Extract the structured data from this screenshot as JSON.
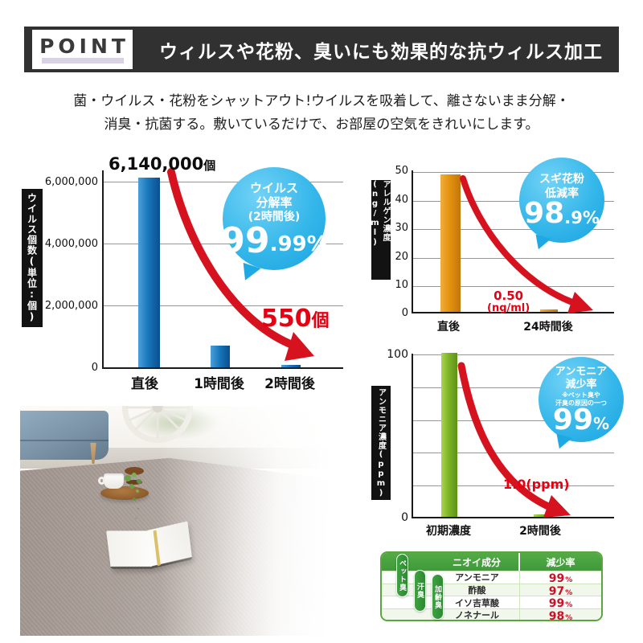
{
  "header": {
    "point_label": "POINT",
    "title": "ウィルスや花粉、臭いにも効果的な抗ウィルス加工"
  },
  "intro": {
    "line1": "菌・ウイルス・花粉をシャットアウト!ウイルスを吸着して、離さないまま分解・",
    "line2": "消臭・抗菌する。敷いているだけで、お部屋の空気をきれいにします。"
  },
  "colors": {
    "bubble_blue": "#1aa8e4",
    "bar_blue": "#1877bc",
    "bar_orange": "#e3920e",
    "bar_green": "#7fb32a",
    "arrow_red": "#d5121e",
    "value_red": "#e60012",
    "table_green": "#3f9a3a",
    "header_band": "#313131"
  },
  "chart_data": [
    {
      "id": "virus-count",
      "type": "bar",
      "ylabel": "ウイルス個数(単位:個)",
      "categories": [
        "直後",
        "1時間後",
        "2時間後"
      ],
      "values": [
        6140000,
        700000,
        550
      ],
      "yticks": [
        "6,000,000",
        "4,000,000",
        "2,000,000",
        "0"
      ],
      "ylim": [
        0,
        6500000
      ],
      "grid": "on",
      "bar_label_num": "6,140,000",
      "bar_label_unit": "個",
      "annotation_num": "550",
      "annotation_unit": "個",
      "bubble": {
        "line1": "ウイルス",
        "line2": "分解率",
        "line3": "(2時間後)",
        "big": "99",
        "small": ".99%"
      }
    },
    {
      "id": "allergen",
      "type": "bar",
      "ylabel": "アレルゲン濃度(ng/ml)",
      "categories": [
        "直後",
        "24時間後"
      ],
      "values": [
        48.5,
        0.5
      ],
      "yticks": [
        "50",
        "40",
        "30",
        "20",
        "10",
        "0"
      ],
      "ylim": [
        0,
        50
      ],
      "grid": "on",
      "annotation_line1": "0.50",
      "annotation_line2": "(ng/ml)",
      "bubble": {
        "line1": "スギ花粉",
        "line2": "低減率",
        "big": "98",
        "small": ".9%"
      }
    },
    {
      "id": "ammonia",
      "type": "bar",
      "ylabel": "アンモニア濃度(ppm)",
      "categories": [
        "初期濃度",
        "2時間後"
      ],
      "values": [
        100,
        1.0
      ],
      "yticks": [
        "100",
        "0"
      ],
      "ylim": [
        0,
        100
      ],
      "grid": "on",
      "annotation": "1.0(ppm)",
      "bubble": {
        "line1": "アンモニア",
        "line2": "減少率",
        "note1": "※ペット臭や",
        "note2": "汗臭の原因の一つ",
        "big": "99",
        "small": "%"
      }
    },
    {
      "id": "odor-reduction",
      "type": "table",
      "columns": [
        "ニオイ成分",
        "減少率"
      ],
      "rows": [
        {
          "name": "アンモニア",
          "value": "99",
          "unit": "%"
        },
        {
          "name": "酢酸",
          "value": "97",
          "unit": "%"
        },
        {
          "name": "イソ吉草酸",
          "value": "99",
          "unit": "%"
        },
        {
          "name": "ノネナール",
          "value": "98",
          "unit": "%"
        }
      ],
      "side_labels": [
        "ペット臭",
        "汗臭",
        "加齢臭"
      ]
    }
  ]
}
